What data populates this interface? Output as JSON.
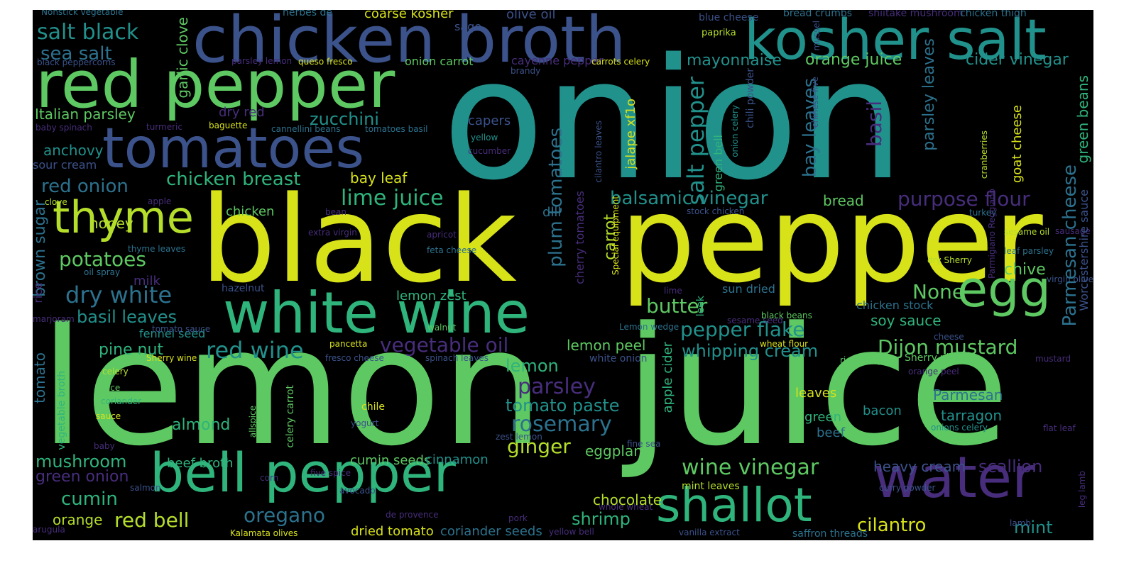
{
  "words": [
    {
      "text": "onion",
      "color": "#21918c"
    },
    {
      "text": "lemon",
      "color": "#5ec962"
    },
    {
      "text": "juice",
      "color": "#5ec962"
    },
    {
      "text": "black",
      "color": "#d8e219"
    },
    {
      "text": "pepper",
      "color": "#d8e219"
    },
    {
      "text": "chicken broth",
      "color": "#3b528b"
    },
    {
      "text": "kosher salt",
      "color": "#21918c"
    },
    {
      "text": "red pepper",
      "color": "#5ec962"
    },
    {
      "text": "tomatoes",
      "color": "#3b528b"
    },
    {
      "text": "white wine",
      "color": "#2fb47c"
    },
    {
      "text": "bell pepper",
      "color": "#2fb47c"
    },
    {
      "text": "water",
      "color": "#472d7b"
    },
    {
      "text": "egg",
      "color": "#5ec962"
    },
    {
      "text": "thyme",
      "color": "#b5de2b"
    },
    {
      "text": "shallot",
      "color": "#2fb47c"
    },
    {
      "text": "salt black",
      "color": "#21918c"
    },
    {
      "text": "sea salt",
      "color": "#2c728e"
    },
    {
      "text": "Italian parsley",
      "color": "#5ec962"
    },
    {
      "text": "garlic clove",
      "color": "#5ec962"
    },
    {
      "text": "dry red",
      "color": "#472d7b"
    },
    {
      "text": "zucchini",
      "color": "#21918c"
    },
    {
      "text": "chicken breast",
      "color": "#2fb47c"
    },
    {
      "text": "red onion",
      "color": "#2c728e"
    },
    {
      "text": "lime juice",
      "color": "#2fb47c"
    },
    {
      "text": "bay leaf",
      "color": "#d8e219"
    },
    {
      "text": "potatoes",
      "color": "#5ec962"
    },
    {
      "text": "honey",
      "color": "#b5de2b"
    },
    {
      "text": "anchovy",
      "color": "#21918c"
    },
    {
      "text": "sour cream",
      "color": "#3b528b"
    },
    {
      "text": "dry white",
      "color": "#2c728e"
    },
    {
      "text": "basil leaves",
      "color": "#21918c"
    },
    {
      "text": "red wine",
      "color": "#21918c"
    },
    {
      "text": "pine nut",
      "color": "#2fb47c"
    },
    {
      "text": "fennel seed",
      "color": "#21918c"
    },
    {
      "text": "vegetable oil",
      "color": "#472d7b"
    },
    {
      "text": "lemon peel",
      "color": "#5ec962"
    },
    {
      "text": "lemon",
      "color": "#2fb47c"
    },
    {
      "text": "parsley",
      "color": "#472d7b"
    },
    {
      "text": "tomato paste",
      "color": "#21918c"
    },
    {
      "text": "rosemary",
      "color": "#2c728e"
    },
    {
      "text": "ginger",
      "color": "#b5de2b"
    },
    {
      "text": "eggplant",
      "color": "#5ec962"
    },
    {
      "text": "almond",
      "color": "#2fb47c"
    },
    {
      "text": "mushroom",
      "color": "#2fb47c"
    },
    {
      "text": "green onion",
      "color": "#472d7b"
    },
    {
      "text": "cumin",
      "color": "#2fb47c"
    },
    {
      "text": "red bell",
      "color": "#b5de2b"
    },
    {
      "text": "oregano",
      "color": "#2c728e"
    },
    {
      "text": "beef broth",
      "color": "#2fb47c"
    },
    {
      "text": "cumin seeds",
      "color": "#5ec962"
    },
    {
      "text": "cinnamon",
      "color": "#21918c"
    },
    {
      "text": "shrimp",
      "color": "#2fb47c"
    },
    {
      "text": "orange",
      "color": "#b5de2b"
    },
    {
      "text": "dried tomato",
      "color": "#d8e219"
    },
    {
      "text": "coriander seeds",
      "color": "#2c728e"
    },
    {
      "text": "chocolate",
      "color": "#b5de2b"
    },
    {
      "text": "mayonnaise",
      "color": "#21918c"
    },
    {
      "text": "orange juice",
      "color": "#5ec962"
    },
    {
      "text": "cider vinegar",
      "color": "#21918c"
    },
    {
      "text": "balsamic vinegar",
      "color": "#21918c"
    },
    {
      "text": "bread",
      "color": "#5ec962"
    },
    {
      "text": "purpose flour",
      "color": "#472d7b"
    },
    {
      "text": "butter",
      "color": "#5ec962"
    },
    {
      "text": "None",
      "color": "#5ec962"
    },
    {
      "text": "pepper flake",
      "color": "#21918c"
    },
    {
      "text": "Dijon mustard",
      "color": "#5ec962"
    },
    {
      "text": "whipping cream",
      "color": "#21918c"
    },
    {
      "text": "chive",
      "color": "#5ec962"
    },
    {
      "text": "soy sauce",
      "color": "#2fb47c"
    },
    {
      "text": "chicken stock",
      "color": "#2c728e"
    },
    {
      "text": "wine vinegar",
      "color": "#5ec962"
    },
    {
      "text": "heavy cream",
      "color": "#3b528b"
    },
    {
      "text": "scallion",
      "color": "#472d7b"
    },
    {
      "text": "cilantro",
      "color": "#d8e219"
    },
    {
      "text": "mint",
      "color": "#21918c"
    },
    {
      "text": "Parmesan",
      "color": "#2c728e"
    },
    {
      "text": "tarragon",
      "color": "#21918c"
    },
    {
      "text": "bacon",
      "color": "#21918c"
    },
    {
      "text": "leaves",
      "color": "#d8e219"
    },
    {
      "text": "green",
      "color": "#2fb47c"
    },
    {
      "text": "beef",
      "color": "#2c728e"
    },
    {
      "text": "coarse kosher",
      "color": "#d8e219"
    },
    {
      "text": "olive oil",
      "color": "#3b528b"
    },
    {
      "text": "sage",
      "color": "#3b528b"
    },
    {
      "text": "onion carrot",
      "color": "#5ec962"
    },
    {
      "text": "cayenne pepper",
      "color": "#472d7b"
    },
    {
      "text": "capers",
      "color": "#3b528b"
    },
    {
      "text": "Nonstick vegetable",
      "color": "#2c728e"
    },
    {
      "text": "herbes de",
      "color": "#2c728e"
    },
    {
      "text": "blue cheese",
      "color": "#3b528b"
    },
    {
      "text": "bread crumbs",
      "color": "#2c728e"
    },
    {
      "text": "shiitake mushroom",
      "color": "#472d7b"
    },
    {
      "text": "chicken thigh",
      "color": "#2c728e"
    },
    {
      "text": "paprika",
      "color": "#b5de2b"
    },
    {
      "text": "black peppercorns",
      "color": "#3b528b"
    },
    {
      "text": "parsley lemon",
      "color": "#472d7b"
    },
    {
      "text": "queso fresco",
      "color": "#d8e219"
    },
    {
      "text": "brandy",
      "color": "#3b528b"
    },
    {
      "text": "carrots celery",
      "color": "#d8e219"
    },
    {
      "text": "baby spinach",
      "color": "#472d7b"
    },
    {
      "text": "turmeric",
      "color": "#472d7b"
    },
    {
      "text": "baguette",
      "color": "#d8e219"
    },
    {
      "text": "cannellini beans",
      "color": "#2c728e"
    },
    {
      "text": "tomatoes basil",
      "color": "#2c728e"
    },
    {
      "text": "yellow",
      "color": "#21918c"
    },
    {
      "text": "cucumber",
      "color": "#472d7b"
    },
    {
      "text": "dill",
      "color": "#2c728e"
    },
    {
      "text": "clove",
      "color": "#b5de2b"
    },
    {
      "text": "apple",
      "color": "#472d7b"
    },
    {
      "text": "bean",
      "color": "#472d7b"
    },
    {
      "text": "chicken",
      "color": "#5ec962"
    },
    {
      "text": "extra virgin",
      "color": "#472d7b"
    },
    {
      "text": "apricot",
      "color": "#472d7b"
    },
    {
      "text": "thyme leaves",
      "color": "#2c728e"
    },
    {
      "text": "oil spray",
      "color": "#2c728e"
    },
    {
      "text": "milk",
      "color": "#472d7b"
    },
    {
      "text": "feta cheese",
      "color": "#2c728e"
    },
    {
      "text": "hazelnut",
      "color": "#3b528b"
    },
    {
      "text": "lemon zest",
      "color": "#2fb47c"
    },
    {
      "text": "tomato sauce",
      "color": "#3b528b"
    },
    {
      "text": "marjoram",
      "color": "#472d7b"
    },
    {
      "text": "walnut",
      "color": "#5ec962"
    },
    {
      "text": "pancetta",
      "color": "#d8e219"
    },
    {
      "text": "Sherry wine",
      "color": "#d8e219"
    },
    {
      "text": "celery",
      "color": "#b5de2b"
    },
    {
      "text": "fresco cheese",
      "color": "#3b528b"
    },
    {
      "text": "spinach leaves",
      "color": "#3b528b"
    },
    {
      "text": "white onion",
      "color": "#3b528b"
    },
    {
      "text": "juice",
      "color": "#5ec962"
    },
    {
      "text": "coriander",
      "color": "#2fb47c"
    },
    {
      "text": "chile",
      "color": "#d8e219"
    },
    {
      "text": "sauce",
      "color": "#d8e219"
    },
    {
      "text": "baby",
      "color": "#472d7b"
    },
    {
      "text": "yogurt",
      "color": "#3b528b"
    },
    {
      "text": "zest lemon",
      "color": "#3b528b"
    },
    {
      "text": "corn",
      "color": "#472d7b"
    },
    {
      "text": "five spice",
      "color": "#472d7b"
    },
    {
      "text": "salmon",
      "color": "#3b528b"
    },
    {
      "text": "avocado",
      "color": "#3b528b"
    },
    {
      "text": "arugula",
      "color": "#472d7b"
    },
    {
      "text": "Kalamata olives",
      "color": "#d8e219"
    },
    {
      "text": "de provence",
      "color": "#472d7b"
    },
    {
      "text": "pork",
      "color": "#472d7b"
    },
    {
      "text": "yellow bell",
      "color": "#472d7b"
    },
    {
      "text": "whole wheat",
      "color": "#472d7b"
    },
    {
      "text": "fine sea",
      "color": "#3b528b"
    },
    {
      "text": "mint leaves",
      "color": "#b5de2b"
    },
    {
      "text": "curry powder",
      "color": "#3b528b"
    },
    {
      "text": "vanilla extract",
      "color": "#3b528b"
    },
    {
      "text": "saffron threads",
      "color": "#2c728e"
    },
    {
      "text": "lamb",
      "color": "#3b528b"
    },
    {
      "text": "onions celery",
      "color": "#21918c"
    },
    {
      "text": "flat leaf",
      "color": "#472d7b"
    },
    {
      "text": "rice vinegar",
      "color": "#5ec962"
    },
    {
      "text": "Sherry vinegar",
      "color": "#5ec962"
    },
    {
      "text": "mustard",
      "color": "#472d7b"
    },
    {
      "text": "orange peel",
      "color": "#472d7b"
    },
    {
      "text": "cheese",
      "color": "#3b528b"
    },
    {
      "text": "wheat flour",
      "color": "#d8e219"
    },
    {
      "text": "Lemon wedge",
      "color": "#2c728e"
    },
    {
      "text": "sesame seed",
      "color": "#472d7b"
    },
    {
      "text": "black beans",
      "color": "#5ec962"
    },
    {
      "text": "sun dried",
      "color": "#2c728e"
    },
    {
      "text": "lime",
      "color": "#472d7b"
    },
    {
      "text": "stock chicken",
      "color": "#3b528b"
    },
    {
      "text": "sesame oil",
      "color": "#b5de2b"
    },
    {
      "text": "sausage",
      "color": "#472d7b"
    },
    {
      "text": "leaf parsley",
      "color": "#2c728e"
    },
    {
      "text": "dry Sherry",
      "color": "#b5de2b"
    },
    {
      "text": "virgin olive",
      "color": "#3b528b"
    },
    {
      "text": "turkey",
      "color": "#2c728e"
    },
    {
      "text": "salt pepper",
      "color": "#21918c"
    },
    {
      "text": "bay leaves",
      "color": "#2c728e"
    },
    {
      "text": "basil",
      "color": "#472d7b"
    },
    {
      "text": "parsley leaves",
      "color": "#2c728e"
    },
    {
      "text": "Parmesan cheese",
      "color": "#2c728e"
    },
    {
      "text": "green beans",
      "color": "#2fb47c"
    },
    {
      "text": "Worcestershire sauce",
      "color": "#3b528b"
    },
    {
      "text": "goat cheese",
      "color": "#d8e219"
    },
    {
      "text": "cranberries",
      "color": "#b5de2b"
    },
    {
      "text": "chinese five",
      "color": "#3b528b"
    },
    {
      "text": "plum tomatoes",
      "color": "#2c728e"
    },
    {
      "text": "carrot",
      "color": "#b5de2b"
    },
    {
      "text": "jalape xf1o",
      "color": "#d8e219"
    },
    {
      "text": "cherry tomatoes",
      "color": "#472d7b"
    },
    {
      "text": "cilantro leaves",
      "color": "#3b528b"
    },
    {
      "text": "Special equipment",
      "color": "#d8e219"
    },
    {
      "text": "chili powder",
      "color": "#3b528b"
    },
    {
      "text": "onion celery",
      "color": "#21918c"
    },
    {
      "text": "green bell",
      "color": "#2fb47c"
    },
    {
      "text": "Parmigiano Reggiano",
      "color": "#472d7b"
    },
    {
      "text": "leek",
      "color": "#2fb47c"
    },
    {
      "text": "apple cider",
      "color": "#2fb47c"
    },
    {
      "text": "brown sugar",
      "color": "#2c728e"
    },
    {
      "text": "rice",
      "color": "#472d7b"
    },
    {
      "text": "tomato",
      "color": "#2c728e"
    },
    {
      "text": "vegetable broth",
      "color": "#2fb47c"
    },
    {
      "text": "allspice",
      "color": "#5ec962"
    },
    {
      "text": "celery carrot",
      "color": "#5ec962"
    },
    {
      "text": "mussel",
      "color": "#3b528b"
    },
    {
      "text": "leg lamb",
      "color": "#472d7b"
    }
  ]
}
